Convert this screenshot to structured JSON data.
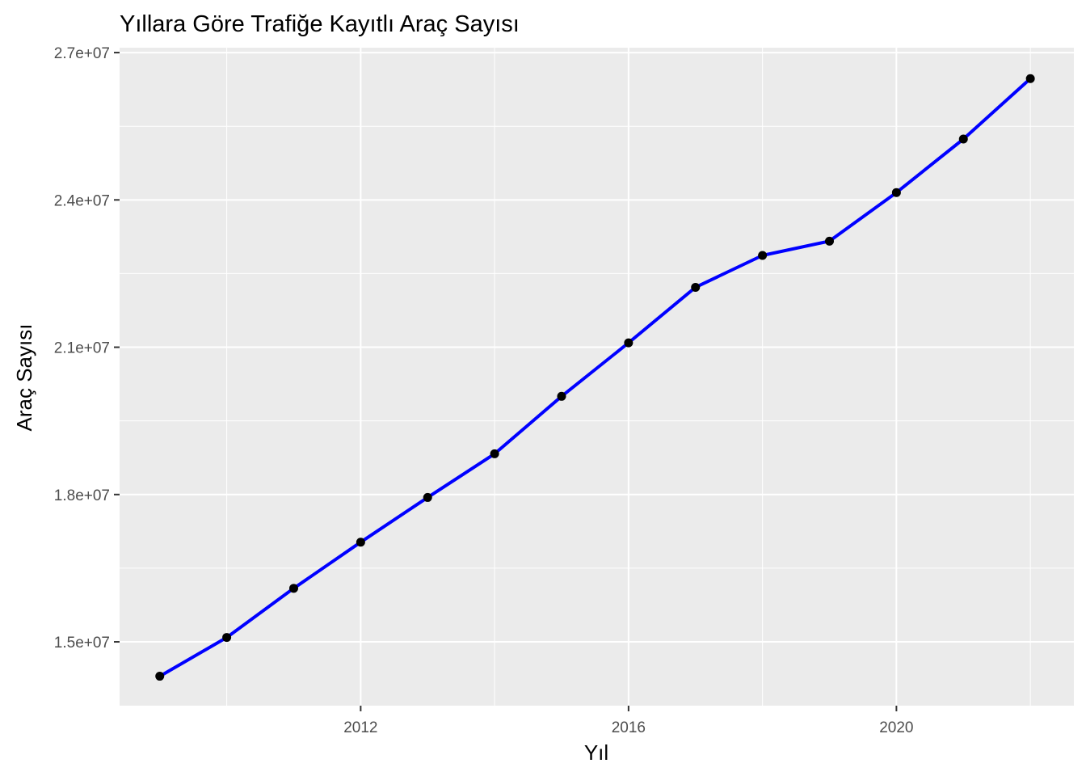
{
  "chart_data": {
    "type": "line",
    "title": "Yıllara Göre Trafiğe Kayıtlı Araç Sayısı",
    "xlabel": "Yıl",
    "ylabel": "Araç Sayısı",
    "x": [
      2009,
      2010,
      2011,
      2012,
      2013,
      2014,
      2015,
      2016,
      2017,
      2018,
      2019,
      2020,
      2021,
      2022
    ],
    "series": [
      {
        "values": [
          14300000,
          15090000,
          16090000,
          17030000,
          17940000,
          18830000,
          20000000,
          21090000,
          22220000,
          22870000,
          23160000,
          24150000,
          25240000,
          26470000
        ]
      }
    ],
    "xlim": [
      2008.4,
      2022.65
    ],
    "ylim": [
      13700000,
      27100000
    ],
    "x_ticks": [
      2012,
      2016,
      2020
    ],
    "x_tick_labels": [
      "2012",
      "2016",
      "2020"
    ],
    "y_ticks": [
      15000000,
      18000000,
      21000000,
      24000000,
      27000000
    ],
    "y_tick_labels": [
      "1.5e+07",
      "1.8e+07",
      "2.1e+07",
      "2.4e+07",
      "2.7e+07"
    ],
    "grid": true,
    "colors": {
      "line": "#0000ff",
      "point": "#000000",
      "panel": "#ebebeb",
      "grid": "#ffffff"
    }
  }
}
